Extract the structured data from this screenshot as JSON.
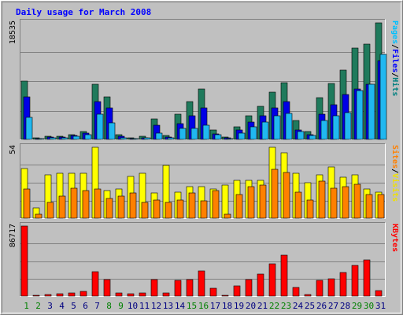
{
  "chart_data": {
    "type": "bar",
    "title": "Daily usage for March 2008",
    "categories": [
      "1",
      "2",
      "3",
      "4",
      "5",
      "6",
      "7",
      "8",
      "9",
      "10",
      "11",
      "12",
      "13",
      "14",
      "15",
      "16",
      "17",
      "18",
      "19",
      "20",
      "21",
      "22",
      "23",
      "24",
      "25",
      "26",
      "27",
      "28",
      "29",
      "30",
      "31"
    ],
    "weekend_days": [
      "1",
      "2",
      "8",
      "9",
      "15",
      "16",
      "22",
      "23",
      "29",
      "30"
    ],
    "panels": [
      {
        "id": "traffic",
        "ymax_label": "18535",
        "ylim": [
          0,
          18535
        ],
        "right_label": [
          "Pages",
          "/",
          "Files",
          "/",
          "Hits"
        ],
        "right_label_colors": [
          "#00c0ff",
          "#000000",
          "#0000ff",
          "#000000",
          "#008080"
        ],
        "series": [
          {
            "name": "Hits",
            "color": "#1f7a5c",
            "values": [
              9300,
              300,
              500,
              500,
              800,
              1200,
              8800,
              6800,
              700,
              300,
              450,
              3300,
              600,
              4000,
              6000,
              8000,
              1500,
              400,
              2000,
              3700,
              5300,
              7500,
              9000,
              3000,
              1200,
              6700,
              8900,
              11000,
              14500,
              15200,
              18535
            ]
          },
          {
            "name": "Files",
            "color": "#0000e6",
            "values": [
              6800,
              120,
              350,
              350,
              600,
              950,
              6000,
              5000,
              450,
              150,
              300,
              2300,
              350,
              2500,
              3700,
              5000,
              900,
              200,
              1500,
              2700,
              3700,
              5000,
              6000,
              1500,
              700,
              4000,
              5500,
              7200,
              8000,
              8800,
              12500
            ]
          },
          {
            "name": "Pages",
            "color": "#20b8f0",
            "values": [
              3500,
              80,
              250,
              250,
              450,
              700,
              4000,
              2600,
              300,
              100,
              200,
              1000,
              250,
              1700,
              1800,
              2300,
              800,
              150,
              1000,
              2000,
              2800,
              3800,
              4100,
              1300,
              600,
              3000,
              3700,
              4200,
              7800,
              8800,
              13500
            ]
          }
        ]
      },
      {
        "id": "visits",
        "ymax_label": "54",
        "ylim": [
          0,
          54
        ],
        "right_label": [
          "Sites",
          "/",
          "Visits"
        ],
        "right_label_colors": [
          "#ff8000",
          "#000000",
          "#f0e000"
        ],
        "series": [
          {
            "name": "Visits",
            "color": "#ffff00",
            "values": [
              38,
              8,
              33,
              34,
              34,
              34,
              54,
              21,
              22,
              32,
              34,
              19,
              40,
              20,
              24,
              24,
              22,
              25,
              29,
              29,
              29,
              54,
              50,
              34,
              27,
              33,
              39,
              31,
              33,
              22,
              20
            ]
          },
          {
            "name": "Sites",
            "color": "#ff8000",
            "values": [
              22,
              3,
              12,
              17,
              23,
              21,
              22,
              15,
              17,
              19,
              12,
              14,
              12,
              14,
              19,
              13,
              21,
              3,
              18,
              24,
              25,
              37,
              35,
              20,
              14,
              28,
              23,
              24,
              26,
              18,
              18
            ]
          }
        ]
      },
      {
        "id": "kbytes",
        "ymax_label": "86717",
        "ylim": [
          0,
          86717
        ],
        "right_label": [
          "KBytes"
        ],
        "right_label_colors": [
          "#ff0000"
        ],
        "series": [
          {
            "name": "KBytes",
            "color": "#ff0000",
            "values": [
              86717,
              800,
              2000,
              2700,
              4000,
              6200,
              30000,
              20000,
              4000,
              2700,
              4000,
              20000,
              4000,
              19000,
              20500,
              31500,
              10000,
              1000,
              12500,
              20000,
              27000,
              40000,
              50500,
              11000,
              2000,
              19500,
              21500,
              29000,
              38000,
              45000,
              6500
            ]
          }
        ]
      }
    ],
    "colors": {
      "background": "#c0c0c0",
      "plot_background": "#c0c0c0",
      "title": "#0000ff",
      "weekday_label": "#000080",
      "weekend_label": "#008000"
    },
    "grid": true
  }
}
